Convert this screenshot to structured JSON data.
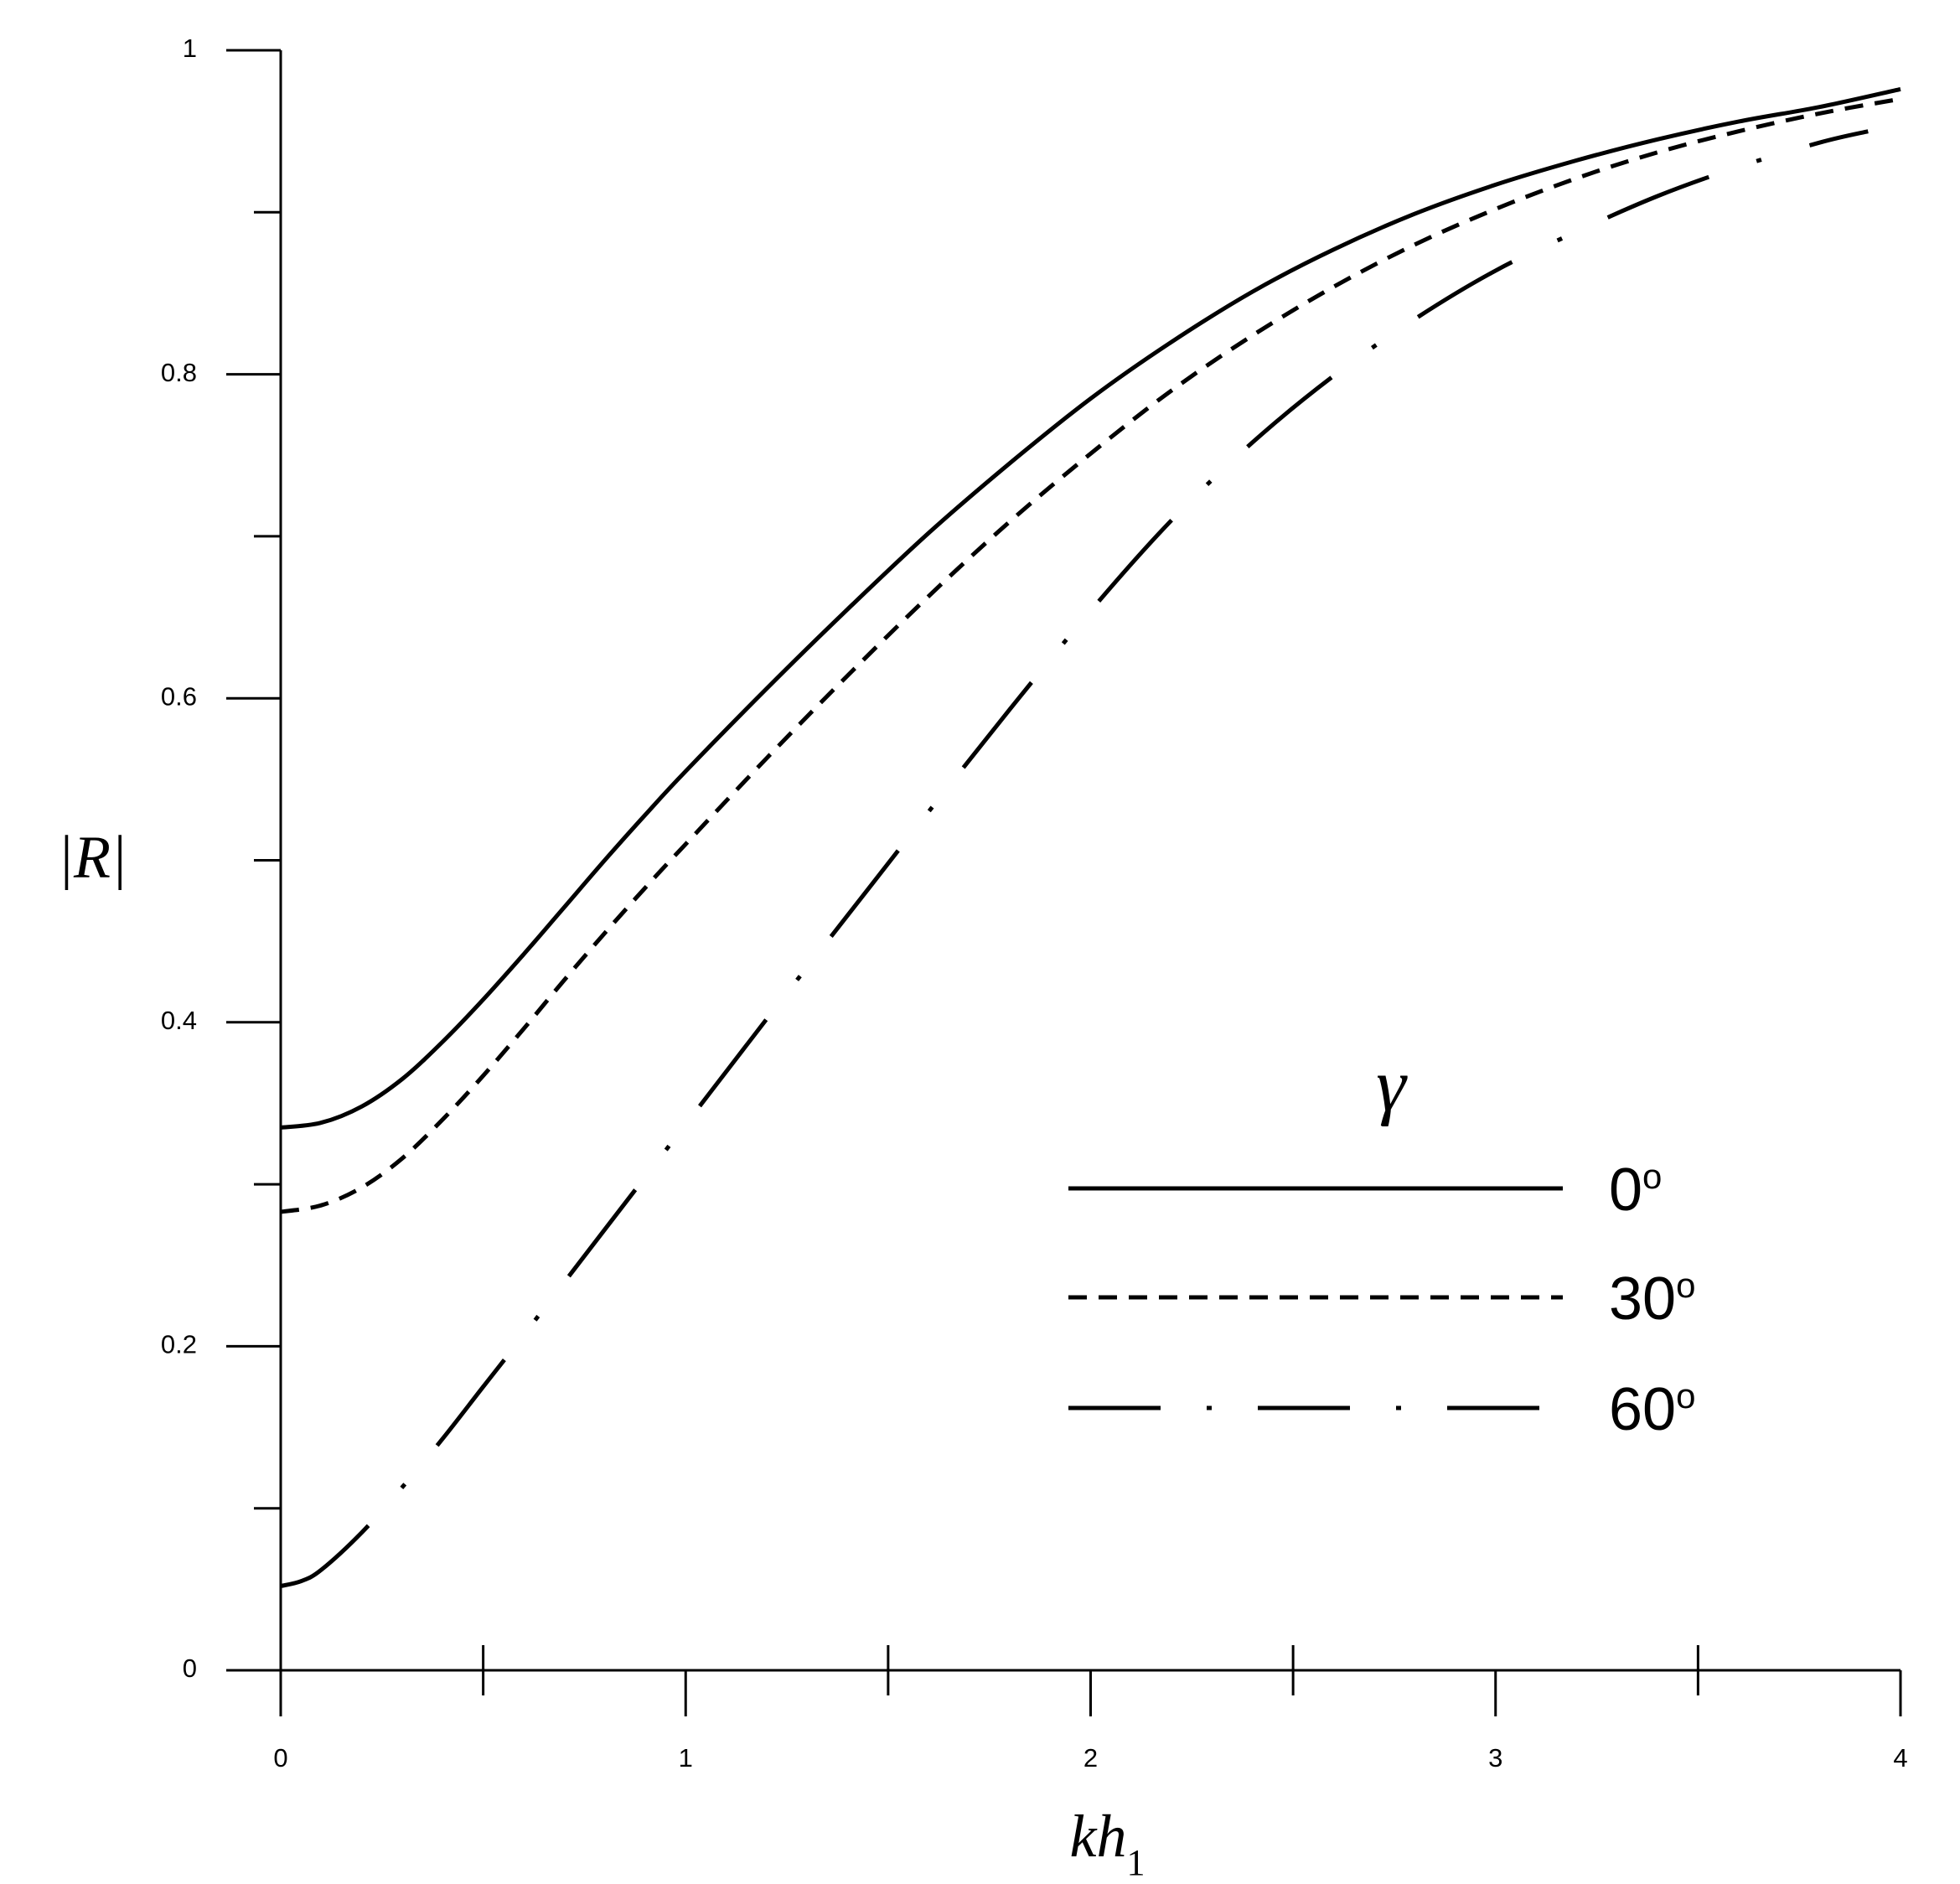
{
  "chart_data": {
    "type": "line",
    "title": "",
    "xlabel": "kh",
    "xlabel_sub": "1",
    "ylabel": "|R|",
    "xlim": [
      0,
      4
    ],
    "ylim": [
      0,
      1
    ],
    "x_ticks": [
      "0",
      "1",
      "2",
      "3",
      "4"
    ],
    "y_ticks": [
      "0",
      "0.2",
      "0.4",
      "0.6",
      "0.8",
      "1"
    ],
    "grid": false,
    "legend": {
      "title": "γ",
      "placement": "center-right",
      "sup": "o"
    },
    "series": [
      {
        "name": "0",
        "style": "solid",
        "points": [
          [
            0,
            0.335
          ],
          [
            0.1,
            0.338
          ],
          [
            0.2,
            0.348
          ],
          [
            0.3,
            0.365
          ],
          [
            0.4,
            0.388
          ],
          [
            0.5,
            0.414
          ],
          [
            0.6,
            0.442
          ],
          [
            0.7,
            0.471
          ],
          [
            0.8,
            0.5
          ],
          [
            0.9,
            0.528
          ],
          [
            1.0,
            0.555
          ],
          [
            1.2,
            0.606
          ],
          [
            1.4,
            0.655
          ],
          [
            1.6,
            0.702
          ],
          [
            1.8,
            0.745
          ],
          [
            2.0,
            0.785
          ],
          [
            2.2,
            0.82
          ],
          [
            2.4,
            0.851
          ],
          [
            2.6,
            0.877
          ],
          [
            2.8,
            0.899
          ],
          [
            3.0,
            0.917
          ],
          [
            3.2,
            0.932
          ],
          [
            3.4,
            0.945
          ],
          [
            3.6,
            0.956
          ],
          [
            3.8,
            0.965
          ],
          [
            4.0,
            0.976
          ]
        ]
      },
      {
        "name": "30",
        "style": "dashed",
        "points": [
          [
            0,
            0.283
          ],
          [
            0.1,
            0.287
          ],
          [
            0.2,
            0.298
          ],
          [
            0.3,
            0.316
          ],
          [
            0.4,
            0.34
          ],
          [
            0.5,
            0.367
          ],
          [
            0.6,
            0.396
          ],
          [
            0.7,
            0.426
          ],
          [
            0.8,
            0.455
          ],
          [
            0.9,
            0.483
          ],
          [
            1.0,
            0.51
          ],
          [
            1.2,
            0.563
          ],
          [
            1.4,
            0.614
          ],
          [
            1.6,
            0.663
          ],
          [
            1.8,
            0.709
          ],
          [
            2.0,
            0.751
          ],
          [
            2.2,
            0.79
          ],
          [
            2.4,
            0.824
          ],
          [
            2.6,
            0.854
          ],
          [
            2.8,
            0.88
          ],
          [
            3.0,
            0.902
          ],
          [
            3.2,
            0.921
          ],
          [
            3.4,
            0.937
          ],
          [
            3.6,
            0.95
          ],
          [
            3.8,
            0.961
          ],
          [
            4.0,
            0.97
          ]
        ]
      },
      {
        "name": "60",
        "style": "dash-dot",
        "points": [
          [
            0,
            0.052
          ],
          [
            0.05,
            0.055
          ],
          [
            0.1,
            0.062
          ],
          [
            0.2,
            0.085
          ],
          [
            0.3,
            0.113
          ],
          [
            0.4,
            0.143
          ],
          [
            0.5,
            0.175
          ],
          [
            0.6,
            0.207
          ],
          [
            0.8,
            0.272
          ],
          [
            1.0,
            0.337
          ],
          [
            1.2,
            0.402
          ],
          [
            1.4,
            0.466
          ],
          [
            1.6,
            0.53
          ],
          [
            1.8,
            0.593
          ],
          [
            2.0,
            0.654
          ],
          [
            2.2,
            0.71
          ],
          [
            2.4,
            0.758
          ],
          [
            2.6,
            0.799
          ],
          [
            2.8,
            0.834
          ],
          [
            3.0,
            0.864
          ],
          [
            3.2,
            0.888
          ],
          [
            3.4,
            0.91
          ],
          [
            3.6,
            0.928
          ],
          [
            3.8,
            0.943
          ],
          [
            3.92,
            0.95
          ]
        ]
      }
    ]
  }
}
